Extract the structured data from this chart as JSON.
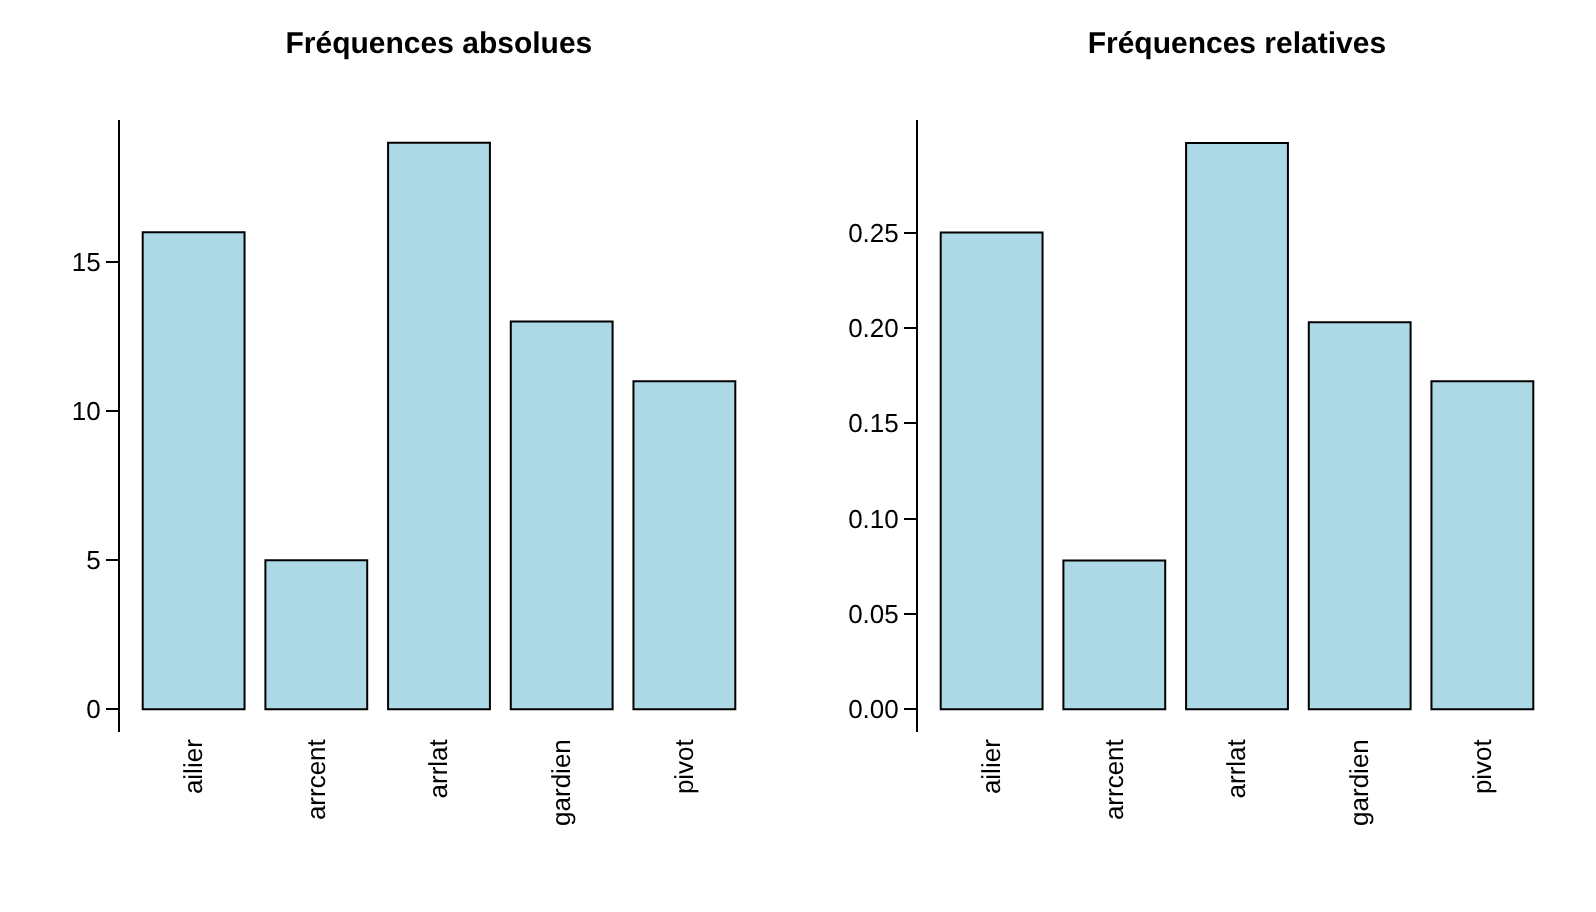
{
  "chart_data": [
    {
      "type": "bar",
      "title": "Fréquences absolues",
      "categories": [
        "ailier",
        "arrcent",
        "arrlat",
        "gardien",
        "pivot"
      ],
      "values": [
        16,
        5,
        19,
        13,
        11
      ],
      "color": "#add8e6",
      "ylim": [
        -0.76,
        19.76
      ],
      "yticks": [
        0,
        5,
        10,
        15
      ],
      "grid": false,
      "legend": false
    },
    {
      "type": "bar",
      "title": "Fréquences relatives",
      "categories": [
        "ailier",
        "arrcent",
        "arrlat",
        "gardien",
        "pivot"
      ],
      "values": [
        0.25,
        0.078,
        0.297,
        0.203,
        0.172
      ],
      "color": "#add8e6",
      "ylim": [
        -0.0119,
        0.309
      ],
      "yticks": [
        {
          "value": 0,
          "label": "0.00"
        },
        {
          "value": 0.05,
          "label": "0.05"
        },
        {
          "value": 0.1,
          "label": "0.10"
        },
        {
          "value": 0.15,
          "label": "0.15"
        },
        {
          "value": 0.2,
          "label": "0.20"
        },
        {
          "value": 0.25,
          "label": "0.25"
        }
      ],
      "grid": false,
      "legend": false
    }
  ]
}
